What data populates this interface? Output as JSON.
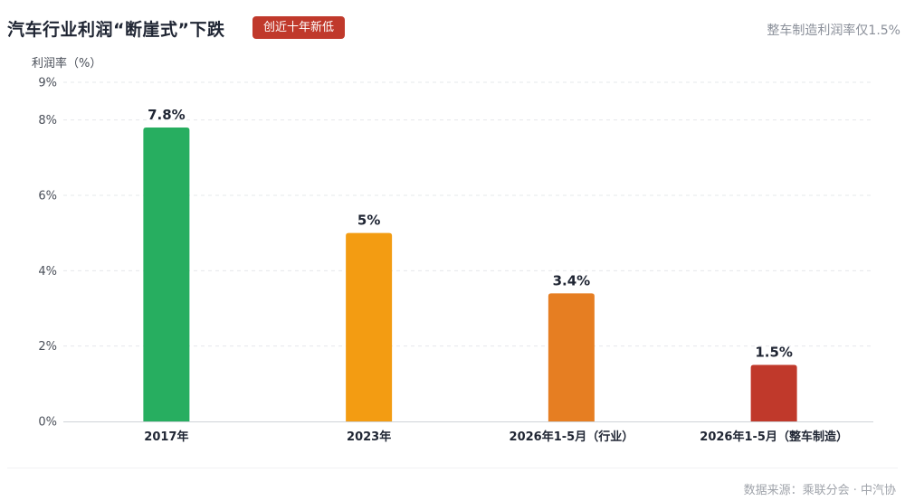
{
  "header": {
    "title": "汽车行业利润“断崖式”下跌",
    "badge": "创近十年新低",
    "subtitle": "整车制造利润率仅1.5%"
  },
  "footer": {
    "source": "数据来源：乘联分会 · 中汽协"
  },
  "chart_data": {
    "type": "bar",
    "ylabel": "利润率（%）",
    "ylim": [
      0,
      9
    ],
    "yticks": [
      0,
      2,
      4,
      6,
      8,
      9
    ],
    "ytick_labels": [
      "0%",
      "2%",
      "4%",
      "6%",
      "8%",
      "9%"
    ],
    "categories": [
      "2017年",
      "2023年",
      "2026年1-5月（行业）",
      "2026年1-5月（整车制造）"
    ],
    "values": [
      7.8,
      5,
      3.4,
      1.5
    ],
    "data_labels": [
      "7.8%",
      "5%",
      "3.4%",
      "1.5%"
    ],
    "bar_colors": [
      "#27ae60",
      "#f39c12",
      "#e67e22",
      "#c0392b"
    ],
    "grid": true,
    "gridline_color": "#e6e8eb",
    "legend": "none"
  }
}
